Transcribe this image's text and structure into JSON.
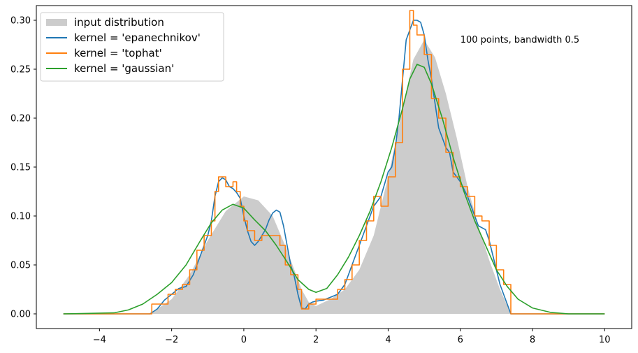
{
  "chart_data": {
    "type": "line",
    "title": "",
    "xlabel": "",
    "ylabel": "",
    "xlim": [
      -5.75,
      10.75
    ],
    "ylim": [
      -0.015,
      0.315
    ],
    "x_ticks": [
      -4,
      -2,
      0,
      2,
      4,
      6,
      8,
      10
    ],
    "y_ticks": [
      0.0,
      0.05,
      0.1,
      0.15,
      0.2,
      0.25,
      0.3
    ],
    "x_tick_labels": [
      "−4",
      "−2",
      "0",
      "2",
      "4",
      "6",
      "8",
      "10"
    ],
    "y_tick_labels": [
      "0.00",
      "0.05",
      "0.10",
      "0.15",
      "0.20",
      "0.25",
      "0.30"
    ],
    "grid": false,
    "legend_position": "top-left",
    "annotation": {
      "text": "100 points, bandwidth 0.5",
      "x": 6.0,
      "y": 0.28
    },
    "fill": {
      "name": "input distribution",
      "color": "#cccccc",
      "points": [
        [
          -2.6,
          0.0
        ],
        [
          -2.0,
          0.015
        ],
        [
          -1.5,
          0.04
        ],
        [
          -1.0,
          0.075
        ],
        [
          -0.5,
          0.105
        ],
        [
          0.0,
          0.12
        ],
        [
          0.4,
          0.116
        ],
        [
          0.8,
          0.1
        ],
        [
          1.2,
          0.065
        ],
        [
          1.6,
          0.025
        ],
        [
          1.8,
          0.012
        ],
        [
          2.0,
          0.008
        ],
        [
          2.4,
          0.015
        ],
        [
          2.8,
          0.025
        ],
        [
          3.2,
          0.045
        ],
        [
          3.6,
          0.08
        ],
        [
          4.0,
          0.14
        ],
        [
          4.4,
          0.21
        ],
        [
          4.7,
          0.26
        ],
        [
          5.0,
          0.28
        ],
        [
          5.3,
          0.262
        ],
        [
          5.6,
          0.225
        ],
        [
          5.9,
          0.18
        ],
        [
          6.2,
          0.13
        ],
        [
          6.5,
          0.09
        ],
        [
          6.8,
          0.055
        ],
        [
          7.1,
          0.025
        ],
        [
          7.4,
          0.0
        ]
      ]
    },
    "series": [
      {
        "name": "kernel = 'epanechnikov'",
        "color": "#1f77b4",
        "step": false,
        "points": [
          [
            -5.0,
            0.0
          ],
          [
            -2.6,
            0.0
          ],
          [
            -2.4,
            0.005
          ],
          [
            -2.2,
            0.014
          ],
          [
            -2.0,
            0.02
          ],
          [
            -1.8,
            0.026
          ],
          [
            -1.6,
            0.028
          ],
          [
            -1.4,
            0.04
          ],
          [
            -1.2,
            0.06
          ],
          [
            -1.0,
            0.08
          ],
          [
            -0.9,
            0.095
          ],
          [
            -0.8,
            0.12
          ],
          [
            -0.7,
            0.135
          ],
          [
            -0.6,
            0.139
          ],
          [
            -0.5,
            0.137
          ],
          [
            -0.4,
            0.13
          ],
          [
            -0.3,
            0.128
          ],
          [
            -0.2,
            0.124
          ],
          [
            -0.1,
            0.118
          ],
          [
            0.0,
            0.1
          ],
          [
            0.1,
            0.085
          ],
          [
            0.2,
            0.074
          ],
          [
            0.3,
            0.07
          ],
          [
            0.4,
            0.074
          ],
          [
            0.5,
            0.08
          ],
          [
            0.6,
            0.086
          ],
          [
            0.7,
            0.096
          ],
          [
            0.8,
            0.103
          ],
          [
            0.9,
            0.106
          ],
          [
            1.0,
            0.104
          ],
          [
            1.1,
            0.09
          ],
          [
            1.2,
            0.07
          ],
          [
            1.3,
            0.05
          ],
          [
            1.4,
            0.038
          ],
          [
            1.5,
            0.02
          ],
          [
            1.6,
            0.006
          ],
          [
            1.7,
            0.005
          ],
          [
            1.8,
            0.01
          ],
          [
            1.9,
            0.012
          ],
          [
            2.0,
            0.013
          ],
          [
            2.2,
            0.014
          ],
          [
            2.4,
            0.017
          ],
          [
            2.6,
            0.02
          ],
          [
            2.8,
            0.03
          ],
          [
            3.0,
            0.05
          ],
          [
            3.2,
            0.07
          ],
          [
            3.4,
            0.09
          ],
          [
            3.6,
            0.11
          ],
          [
            3.8,
            0.12
          ],
          [
            4.0,
            0.145
          ],
          [
            4.1,
            0.15
          ],
          [
            4.2,
            0.17
          ],
          [
            4.3,
            0.2
          ],
          [
            4.4,
            0.24
          ],
          [
            4.5,
            0.28
          ],
          [
            4.6,
            0.29
          ],
          [
            4.7,
            0.3
          ],
          [
            4.8,
            0.3
          ],
          [
            4.9,
            0.298
          ],
          [
            5.0,
            0.285
          ],
          [
            5.1,
            0.26
          ],
          [
            5.2,
            0.24
          ],
          [
            5.3,
            0.215
          ],
          [
            5.4,
            0.19
          ],
          [
            5.5,
            0.18
          ],
          [
            5.6,
            0.17
          ],
          [
            5.7,
            0.165
          ],
          [
            5.8,
            0.145
          ],
          [
            6.0,
            0.135
          ],
          [
            6.2,
            0.12
          ],
          [
            6.3,
            0.11
          ],
          [
            6.4,
            0.1
          ],
          [
            6.5,
            0.09
          ],
          [
            6.6,
            0.088
          ],
          [
            6.7,
            0.086
          ],
          [
            6.8,
            0.075
          ],
          [
            6.9,
            0.06
          ],
          [
            7.0,
            0.045
          ],
          [
            7.1,
            0.03
          ],
          [
            7.2,
            0.02
          ],
          [
            7.3,
            0.01
          ],
          [
            7.4,
            0.0
          ],
          [
            10.0,
            0.0
          ]
        ]
      },
      {
        "name": "kernel = 'tophat'",
        "color": "#ff7f0e",
        "step": true,
        "points": [
          [
            -5.0,
            0.0
          ],
          [
            -2.55,
            0.0
          ],
          [
            -2.55,
            0.01
          ],
          [
            -2.1,
            0.01
          ],
          [
            -2.1,
            0.02
          ],
          [
            -1.9,
            0.02
          ],
          [
            -1.9,
            0.025
          ],
          [
            -1.7,
            0.025
          ],
          [
            -1.7,
            0.03
          ],
          [
            -1.5,
            0.03
          ],
          [
            -1.5,
            0.045
          ],
          [
            -1.3,
            0.045
          ],
          [
            -1.3,
            0.065
          ],
          [
            -1.1,
            0.065
          ],
          [
            -1.1,
            0.08
          ],
          [
            -0.9,
            0.08
          ],
          [
            -0.9,
            0.095
          ],
          [
            -0.8,
            0.095
          ],
          [
            -0.8,
            0.125
          ],
          [
            -0.7,
            0.125
          ],
          [
            -0.7,
            0.14
          ],
          [
            -0.5,
            0.14
          ],
          [
            -0.5,
            0.13
          ],
          [
            -0.3,
            0.13
          ],
          [
            -0.3,
            0.135
          ],
          [
            -0.2,
            0.135
          ],
          [
            -0.2,
            0.125
          ],
          [
            -0.1,
            0.125
          ],
          [
            -0.1,
            0.11
          ],
          [
            0.0,
            0.11
          ],
          [
            0.0,
            0.095
          ],
          [
            0.1,
            0.095
          ],
          [
            0.1,
            0.085
          ],
          [
            0.3,
            0.085
          ],
          [
            0.3,
            0.075
          ],
          [
            0.5,
            0.075
          ],
          [
            0.5,
            0.08
          ],
          [
            0.8,
            0.08
          ],
          [
            0.8,
            0.08
          ],
          [
            1.0,
            0.08
          ],
          [
            1.0,
            0.07
          ],
          [
            1.15,
            0.07
          ],
          [
            1.15,
            0.05
          ],
          [
            1.3,
            0.05
          ],
          [
            1.3,
            0.04
          ],
          [
            1.5,
            0.04
          ],
          [
            1.5,
            0.025
          ],
          [
            1.6,
            0.025
          ],
          [
            1.6,
            0.005
          ],
          [
            1.8,
            0.005
          ],
          [
            1.8,
            0.01
          ],
          [
            2.0,
            0.01
          ],
          [
            2.0,
            0.015
          ],
          [
            2.6,
            0.015
          ],
          [
            2.6,
            0.025
          ],
          [
            2.8,
            0.025
          ],
          [
            2.8,
            0.035
          ],
          [
            3.0,
            0.035
          ],
          [
            3.0,
            0.05
          ],
          [
            3.2,
            0.05
          ],
          [
            3.2,
            0.075
          ],
          [
            3.4,
            0.075
          ],
          [
            3.4,
            0.095
          ],
          [
            3.6,
            0.095
          ],
          [
            3.6,
            0.12
          ],
          [
            3.8,
            0.12
          ],
          [
            3.8,
            0.11
          ],
          [
            4.0,
            0.11
          ],
          [
            4.0,
            0.14
          ],
          [
            4.2,
            0.14
          ],
          [
            4.2,
            0.175
          ],
          [
            4.4,
            0.175
          ],
          [
            4.4,
            0.25
          ],
          [
            4.6,
            0.25
          ],
          [
            4.6,
            0.31
          ],
          [
            4.7,
            0.31
          ],
          [
            4.7,
            0.295
          ],
          [
            4.8,
            0.295
          ],
          [
            4.8,
            0.285
          ],
          [
            5.0,
            0.285
          ],
          [
            5.0,
            0.265
          ],
          [
            5.2,
            0.265
          ],
          [
            5.2,
            0.22
          ],
          [
            5.4,
            0.22
          ],
          [
            5.4,
            0.2
          ],
          [
            5.6,
            0.2
          ],
          [
            5.6,
            0.165
          ],
          [
            5.8,
            0.165
          ],
          [
            5.8,
            0.14
          ],
          [
            6.0,
            0.14
          ],
          [
            6.0,
            0.13
          ],
          [
            6.2,
            0.13
          ],
          [
            6.2,
            0.12
          ],
          [
            6.4,
            0.12
          ],
          [
            6.4,
            0.1
          ],
          [
            6.6,
            0.1
          ],
          [
            6.6,
            0.095
          ],
          [
            6.8,
            0.095
          ],
          [
            6.8,
            0.07
          ],
          [
            7.0,
            0.07
          ],
          [
            7.0,
            0.045
          ],
          [
            7.2,
            0.045
          ],
          [
            7.2,
            0.03
          ],
          [
            7.4,
            0.03
          ],
          [
            7.4,
            0.0
          ],
          [
            10.0,
            0.0
          ]
        ]
      },
      {
        "name": "kernel = 'gaussian'",
        "color": "#2ca02c",
        "step": false,
        "points": [
          [
            -5.0,
            0.0
          ],
          [
            -3.6,
            0.001
          ],
          [
            -3.2,
            0.004
          ],
          [
            -2.8,
            0.01
          ],
          [
            -2.4,
            0.02
          ],
          [
            -2.0,
            0.032
          ],
          [
            -1.6,
            0.05
          ],
          [
            -1.2,
            0.075
          ],
          [
            -0.9,
            0.093
          ],
          [
            -0.6,
            0.106
          ],
          [
            -0.3,
            0.112
          ],
          [
            0.0,
            0.108
          ],
          [
            0.3,
            0.096
          ],
          [
            0.6,
            0.085
          ],
          [
            0.9,
            0.07
          ],
          [
            1.2,
            0.053
          ],
          [
            1.5,
            0.035
          ],
          [
            1.8,
            0.025
          ],
          [
            2.0,
            0.022
          ],
          [
            2.3,
            0.026
          ],
          [
            2.6,
            0.04
          ],
          [
            2.9,
            0.058
          ],
          [
            3.2,
            0.08
          ],
          [
            3.5,
            0.105
          ],
          [
            3.8,
            0.135
          ],
          [
            4.1,
            0.17
          ],
          [
            4.4,
            0.21
          ],
          [
            4.6,
            0.24
          ],
          [
            4.8,
            0.255
          ],
          [
            5.0,
            0.252
          ],
          [
            5.2,
            0.235
          ],
          [
            5.5,
            0.2
          ],
          [
            5.8,
            0.16
          ],
          [
            6.1,
            0.125
          ],
          [
            6.4,
            0.095
          ],
          [
            6.7,
            0.07
          ],
          [
            7.0,
            0.045
          ],
          [
            7.3,
            0.028
          ],
          [
            7.6,
            0.015
          ],
          [
            8.0,
            0.006
          ],
          [
            8.5,
            0.0015
          ],
          [
            9.0,
            0.0
          ],
          [
            10.0,
            0.0
          ]
        ]
      }
    ]
  }
}
